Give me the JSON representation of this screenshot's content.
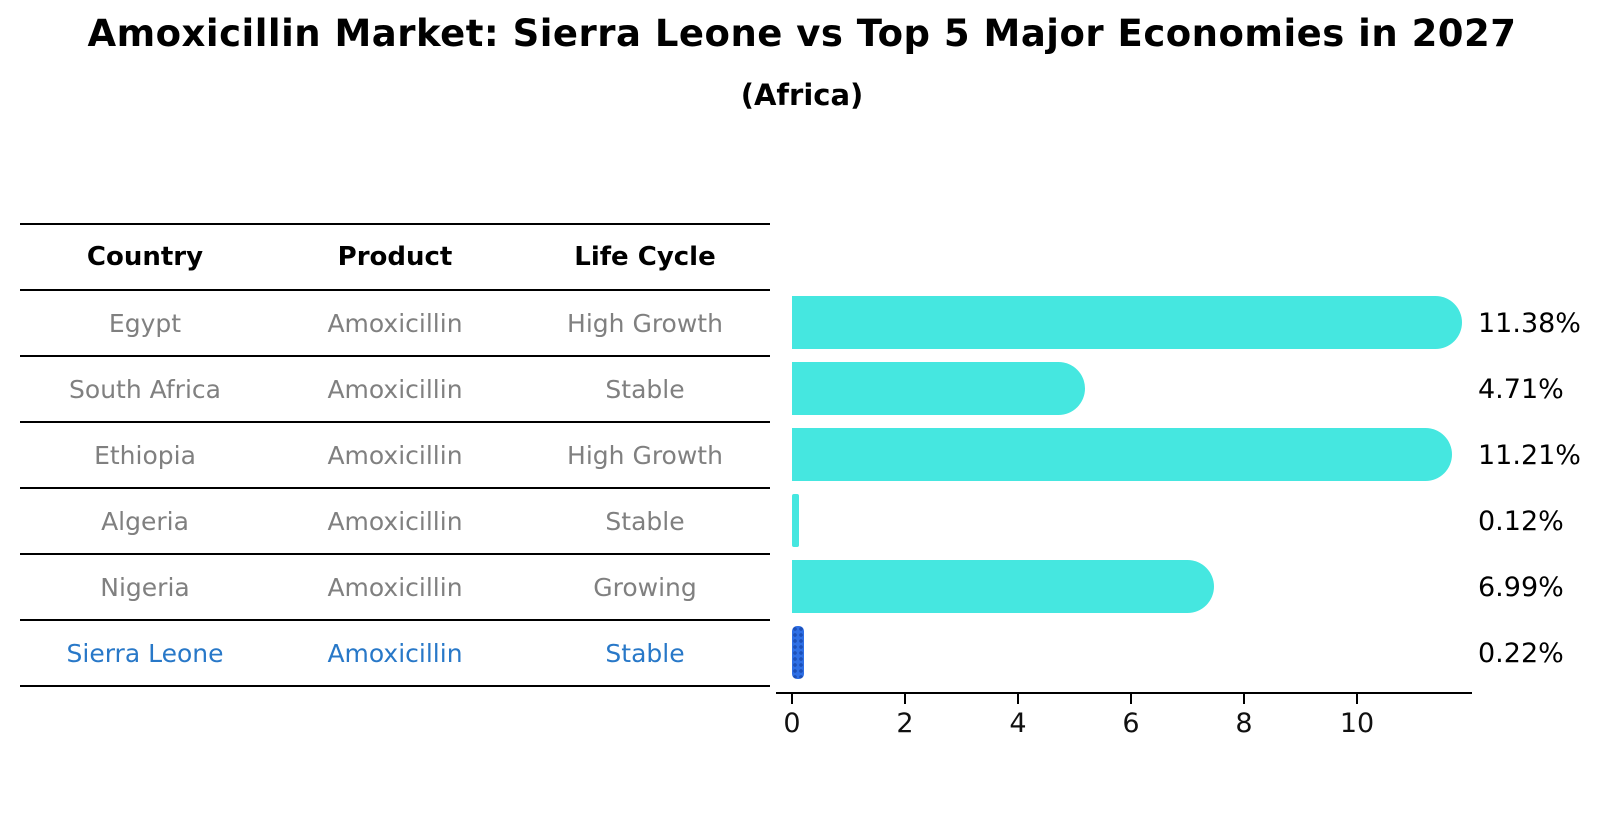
{
  "title": "Amoxicillin Market: Sierra Leone vs Top 5 Major Economies in 2027",
  "subtitle": "(Africa)",
  "table": {
    "headers": [
      "Country",
      "Product",
      "Life Cycle"
    ],
    "rows": [
      {
        "country": "Egypt",
        "product": "Amoxicillin",
        "life_cycle": "High Growth",
        "highlight": false
      },
      {
        "country": "South Africa",
        "product": "Amoxicillin",
        "life_cycle": "Stable",
        "highlight": false
      },
      {
        "country": "Ethiopia",
        "product": "Amoxicillin",
        "life_cycle": "High Growth",
        "highlight": false
      },
      {
        "country": "Algeria",
        "product": "Amoxicillin",
        "life_cycle": "Stable",
        "highlight": false
      },
      {
        "country": "Nigeria",
        "product": "Amoxicillin",
        "life_cycle": "Growing",
        "highlight": false
      },
      {
        "country": "Sierra Leone",
        "product": "Amoxicillin",
        "life_cycle": "Stable",
        "highlight": true
      }
    ]
  },
  "chart_data": {
    "type": "bar",
    "orientation": "horizontal",
    "title": "Amoxicillin Market: Sierra Leone vs Top 5 Major Economies in 2027",
    "subtitle": "(Africa)",
    "categories": [
      "Egypt",
      "South Africa",
      "Ethiopia",
      "Algeria",
      "Nigeria",
      "Sierra Leone"
    ],
    "values": [
      11.38,
      4.71,
      11.21,
      0.12,
      6.99,
      0.22
    ],
    "value_labels": [
      "11.38%",
      "4.71%",
      "11.21%",
      "0.12%",
      "6.99%",
      "0.22%"
    ],
    "xlabel": "",
    "ylabel": "",
    "xlim": [
      0,
      12
    ],
    "xticks": [
      "0",
      "2",
      "4",
      "6",
      "8",
      "10"
    ],
    "grid": false,
    "legend": false,
    "highlight_index": 5
  },
  "colors": {
    "bar": "#45E7E0",
    "highlight_bar": "#2E6FE5",
    "highlight_bar_dot": "#1C50B9",
    "row_text": "#808080",
    "highlight_text": "#2878C8",
    "header_text": "#000000",
    "value_text": "#000000",
    "axis": "#000000",
    "background": "#FFFFFF"
  }
}
